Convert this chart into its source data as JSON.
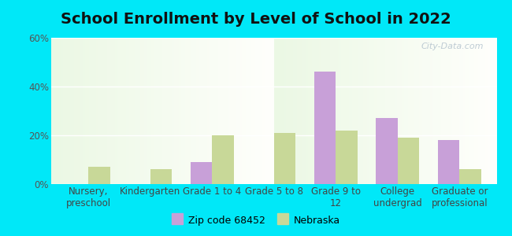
{
  "title": "School Enrollment by Level of School in 2022",
  "categories": [
    "Nursery,\npreschool",
    "Kindergarten",
    "Grade 1 to 4",
    "Grade 5 to 8",
    "Grade 9 to\n12",
    "College\nundergrad",
    "Graduate or\nprofessional"
  ],
  "zip_values": [
    0,
    0,
    9,
    0,
    46,
    27,
    18
  ],
  "nebraska_values": [
    7,
    6,
    20,
    21,
    22,
    19,
    6
  ],
  "zip_color": "#c8a0d8",
  "nebraska_color": "#c8d898",
  "background_outer": "#00e8f8",
  "ylim": [
    0,
    60
  ],
  "yticks": [
    0,
    20,
    40,
    60
  ],
  "ytick_labels": [
    "0%",
    "20%",
    "40%",
    "60%"
  ],
  "legend_zip_label": "Zip code 68452",
  "legend_nebraska_label": "Nebraska",
  "watermark": "City-Data.com",
  "bar_width": 0.35,
  "title_fontsize": 14,
  "tick_fontsize": 8.5
}
